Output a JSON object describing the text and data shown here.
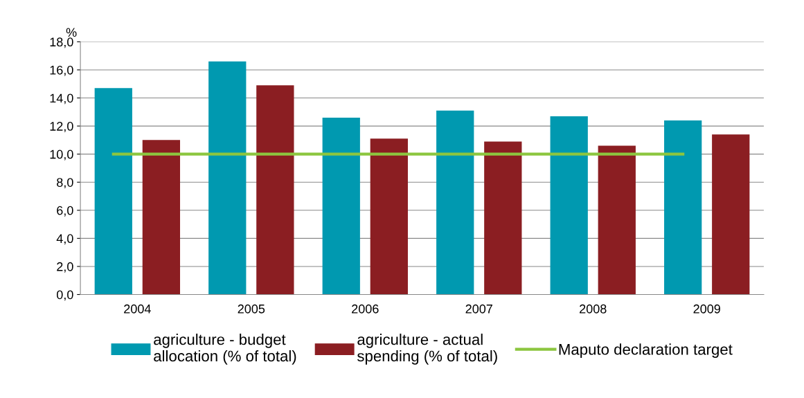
{
  "chart_data": {
    "type": "bar",
    "ylabel": "%",
    "categories": [
      "2004",
      "2005",
      "2006",
      "2007",
      "2008",
      "2009"
    ],
    "series": [
      {
        "name": "agriculture - budget\nallocation (% of total)",
        "color": "#0099b0",
        "values": [
          14.7,
          16.6,
          12.6,
          13.1,
          12.7,
          12.4
        ]
      },
      {
        "name": "agriculture - actual\nspending (% of total)",
        "color": "#8b1e22",
        "values": [
          11.0,
          14.9,
          11.1,
          10.9,
          10.6,
          11.4
        ]
      },
      {
        "name": "Maputo declaration target",
        "type": "line",
        "color": "#8cc63f",
        "values": [
          10,
          10,
          10,
          10,
          10,
          10
        ]
      }
    ],
    "ylim": [
      0,
      18
    ],
    "yticks": [
      {
        "value": 0,
        "label": "0,0"
      },
      {
        "value": 2,
        "label": "2,0"
      },
      {
        "value": 4,
        "label": "4,0"
      },
      {
        "value": 6,
        "label": "6,0"
      },
      {
        "value": 8,
        "label": "8,0"
      },
      {
        "value": 10,
        "label": "10,0"
      },
      {
        "value": 12,
        "label": "12,0"
      },
      {
        "value": 14,
        "label": "14,0"
      },
      {
        "value": 16,
        "label": "16,0"
      },
      {
        "value": 18,
        "label": "18,0"
      }
    ],
    "grid": "y",
    "legend": "bottom",
    "marker": "none",
    "line_style": "solid"
  }
}
